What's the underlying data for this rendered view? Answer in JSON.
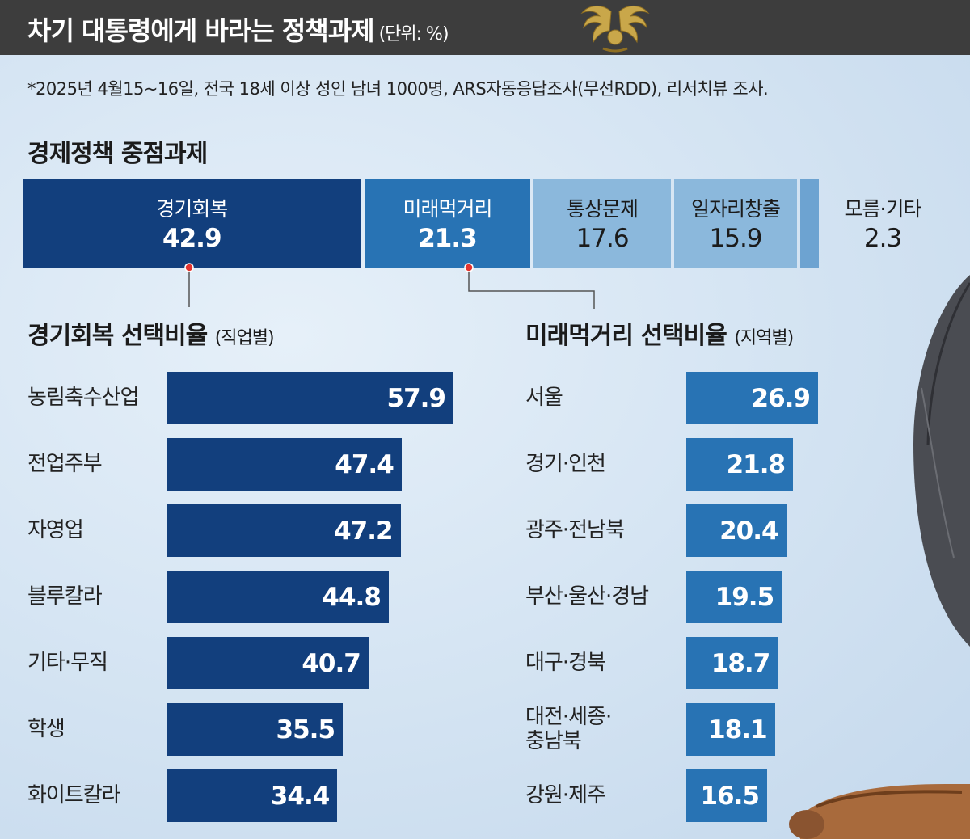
{
  "header": {
    "title": "차기 대통령에게 바라는 정책과제",
    "unit": "(단위: %)"
  },
  "note": "*2025년 4월15~16일, 전국 18세 이상 성인 남녀 1000명, ARS자동응답조사(무선RDD), 리서치뷰 조사.",
  "colors": {
    "dark_blue": "#123f7d",
    "mid_blue": "#2873b4",
    "light_blue": "#8bb8dc",
    "pale_blue": "#6da3d1",
    "accent_red": "#e4342f"
  },
  "chart_data": [
    {
      "type": "bar",
      "orientation": "stacked-horizontal",
      "title": "경제정책 중점과제",
      "categories": [
        "경기회복",
        "미래먹거리",
        "통상문제",
        "일자리창출",
        "모름·기타"
      ],
      "values": [
        42.9,
        21.3,
        17.6,
        15.9,
        2.3
      ],
      "value_labels": [
        "42.9",
        "21.3",
        "17.6",
        "15.9",
        "2.3"
      ],
      "legend": "none",
      "grid": false
    },
    {
      "type": "bar",
      "orientation": "horizontal",
      "title": "경기회복 선택비율",
      "subtitle": "(직업별)",
      "categories": [
        "농림축수산업",
        "전업주부",
        "자영업",
        "블루칼라",
        "기타·무직",
        "학생",
        "화이트칼라"
      ],
      "values": [
        57.9,
        47.4,
        47.2,
        44.8,
        40.7,
        35.5,
        34.4
      ],
      "value_labels": [
        "57.9",
        "47.4",
        "47.2",
        "44.8",
        "40.7",
        "35.5",
        "34.4"
      ],
      "xlim": [
        0,
        57.9
      ],
      "grid": false
    },
    {
      "type": "bar",
      "orientation": "horizontal",
      "title": "미래먹거리 선택비율",
      "subtitle": "(지역별)",
      "categories": [
        "서울",
        "경기·인천",
        "광주·전남북",
        "부산·울산·경남",
        "대구·경북",
        "대전·세종·\n충남북",
        "강원·제주"
      ],
      "values": [
        26.9,
        21.8,
        20.4,
        19.5,
        18.7,
        18.1,
        16.5
      ],
      "value_labels": [
        "26.9",
        "21.8",
        "20.4",
        "19.5",
        "18.7",
        "18.1",
        "16.5"
      ],
      "xlim": [
        0,
        26.9
      ],
      "grid": false
    }
  ]
}
